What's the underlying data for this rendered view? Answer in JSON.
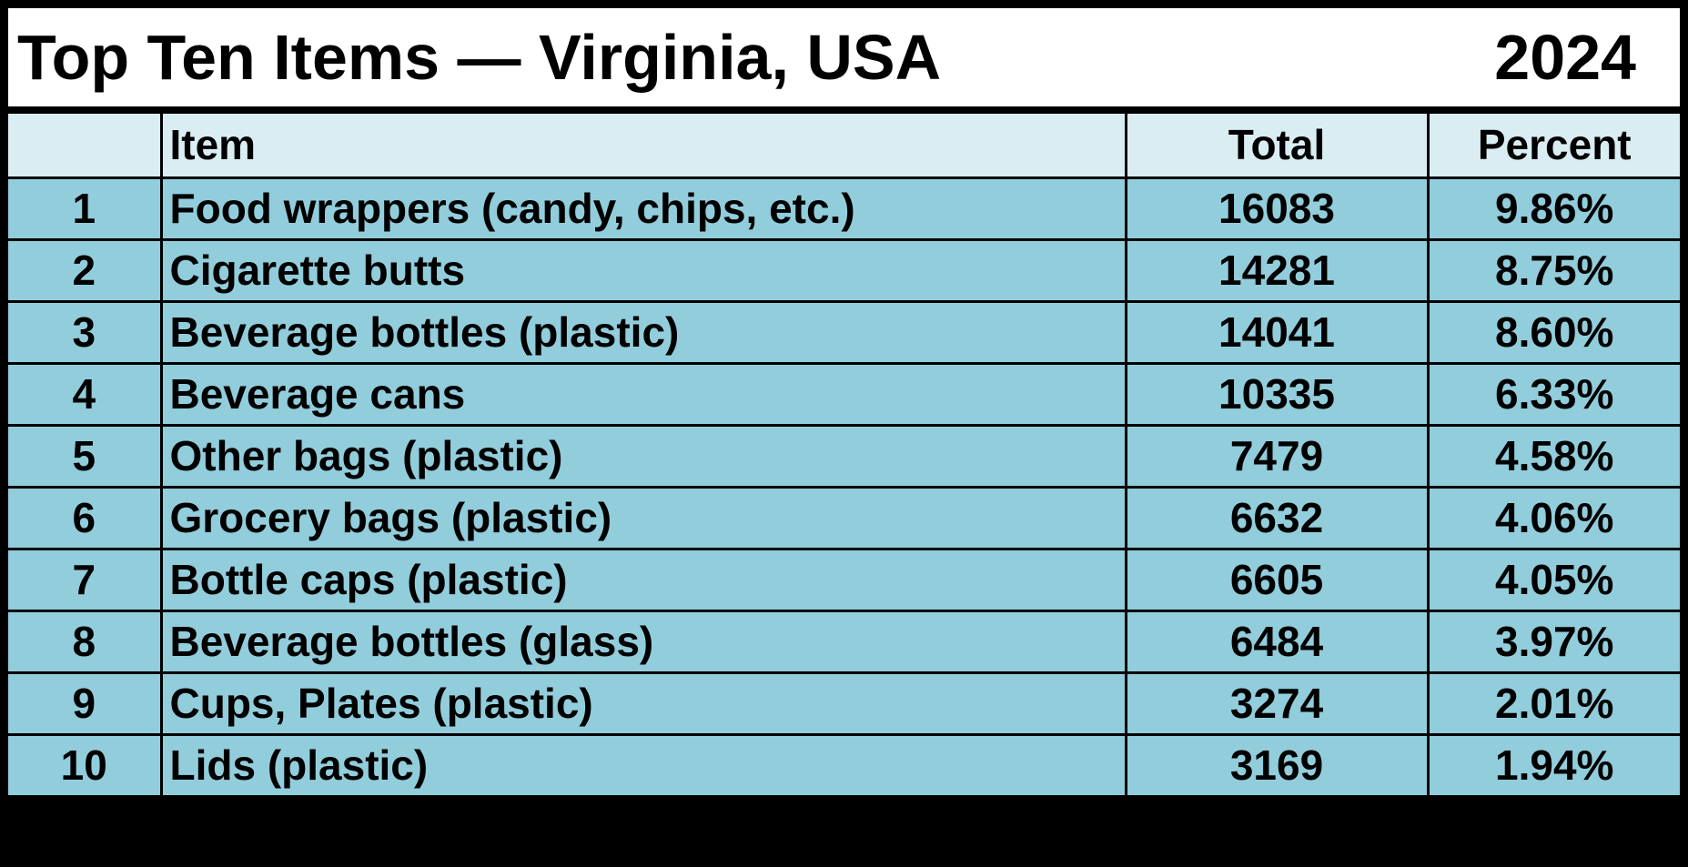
{
  "header": {
    "title": "Top Ten Items — Virginia, USA",
    "year": "2024"
  },
  "table": {
    "columns": {
      "item": "Item",
      "total": "Total",
      "percent": "Percent"
    },
    "rows": [
      {
        "rank": 1,
        "item": "Food wrappers (candy, chips, etc.)",
        "total": 16083,
        "percent": "9.86%"
      },
      {
        "rank": 2,
        "item": "Cigarette butts",
        "total": 14281,
        "percent": "8.75%"
      },
      {
        "rank": 3,
        "item": "Beverage bottles (plastic)",
        "total": 14041,
        "percent": "8.60%"
      },
      {
        "rank": 4,
        "item": "Beverage cans",
        "total": 10335,
        "percent": "6.33%"
      },
      {
        "rank": 5,
        "item": "Other bags (plastic)",
        "total": 7479,
        "percent": "4.58%"
      },
      {
        "rank": 6,
        "item": "Grocery bags (plastic)",
        "total": 6632,
        "percent": "4.06%"
      },
      {
        "rank": 7,
        "item": "Bottle caps (plastic)",
        "total": 6605,
        "percent": "4.05%"
      },
      {
        "rank": 8,
        "item": "Beverage bottles (glass)",
        "total": 6484,
        "percent": "3.97%"
      },
      {
        "rank": 9,
        "item": "Cups, Plates (plastic)",
        "total": 3274,
        "percent": "2.01%"
      },
      {
        "rank": 10,
        "item": "Lids (plastic)",
        "total": 3169,
        "percent": "1.94%"
      }
    ]
  }
}
